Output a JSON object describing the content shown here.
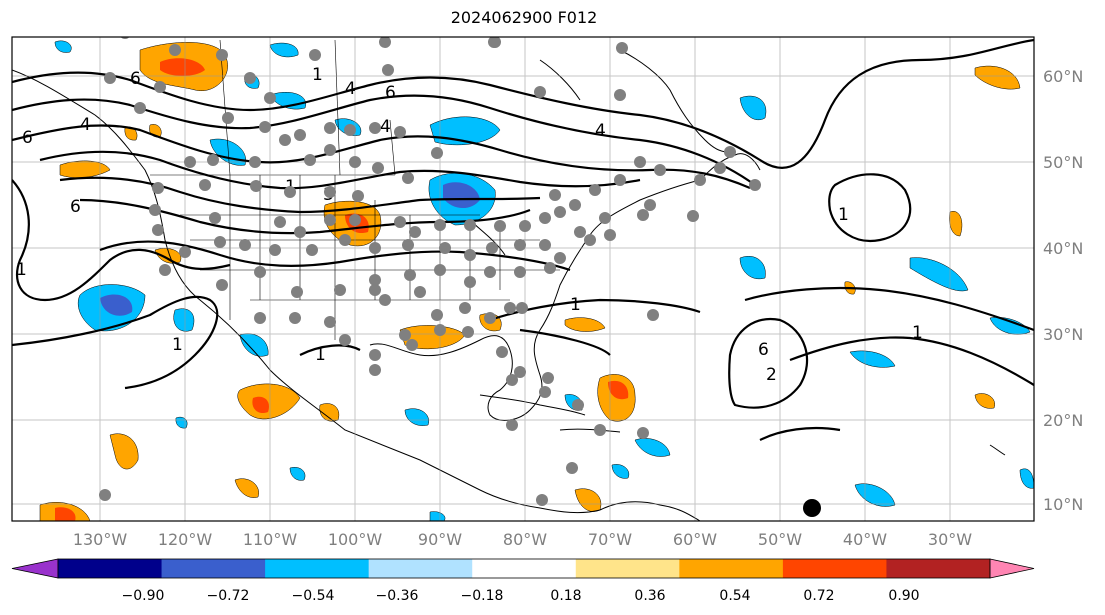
{
  "title": "2024062900 F012",
  "lat_labels": [
    "60°N",
    "50°N",
    "40°N",
    "30°N",
    "20°N",
    "10°N"
  ],
  "lon_labels": [
    "130°W",
    "120°W",
    "110°W",
    "100°W",
    "90°W",
    "80°W",
    "70°W",
    "60°W",
    "50°W",
    "40°W",
    "30°W"
  ],
  "colorbar": {
    "tick_labels": [
      "−0.90",
      "−0.72",
      "−0.54",
      "−0.36",
      "−0.18",
      "0.18",
      "0.36",
      "0.54",
      "0.72",
      "0.90"
    ],
    "colors": [
      "#9932cc",
      "#00008b",
      "#3a5fcd",
      "#00bfff",
      "#b0e2ff",
      "#ffffff",
      "#ffe48a",
      "#ffa500",
      "#ff4500",
      "#b22222",
      "#ff85b3"
    ]
  },
  "contour_labels": [
    "6",
    "6",
    "6",
    "6",
    "6",
    "1",
    "4",
    "4",
    "4",
    "4",
    "1",
    "1",
    "1",
    "1",
    "1",
    "2",
    "3",
    "1",
    "1"
  ],
  "station_marker": "black-dot"
}
